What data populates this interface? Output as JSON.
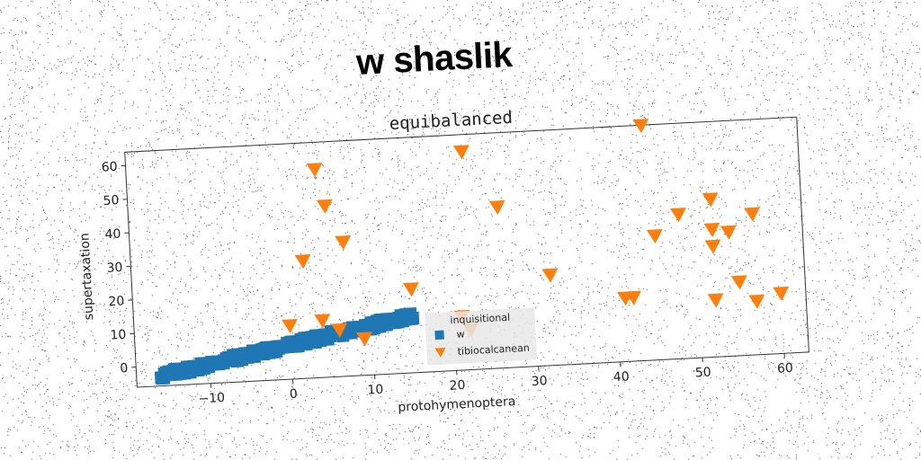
{
  "suptitle": "w shaslik",
  "chart_data": {
    "type": "scatter",
    "title": "equibalanced",
    "xlabel": "protohymenoptera",
    "ylabel": "supertaxation",
    "xlim": [
      -19,
      63
    ],
    "ylim": [
      -6,
      64
    ],
    "xticks": [
      -10,
      0,
      10,
      20,
      30,
      40,
      50,
      60
    ],
    "yticks": [
      0,
      10,
      20,
      30,
      40,
      50,
      60
    ],
    "rotation_deg": -3,
    "grid": false,
    "legend": {
      "title": "inquisitional",
      "placement": "lower center",
      "entries": [
        "w",
        "tibiocalcanean"
      ]
    },
    "series": [
      {
        "name": "w",
        "marker": "square",
        "color": "#1f77b4",
        "x_range": [
          -16,
          15
        ],
        "y_range": [
          -3,
          11
        ],
        "points": 220
      },
      {
        "name": "tibiocalcanean",
        "marker": "triangle_down",
        "color": "#ff7f0e",
        "x": [
          44,
          22,
          4,
          5,
          26,
          7,
          2,
          15,
          0,
          4,
          6,
          9,
          21,
          22,
          32,
          41,
          42,
          45,
          48,
          52,
          52,
          52,
          54,
          57,
          55,
          52,
          57,
          60
        ],
        "y": [
          64,
          59,
          56,
          45,
          42,
          34,
          29,
          19,
          10,
          11,
          8,
          5,
          10,
          6,
          21,
          13,
          13,
          31,
          37,
          41,
          32,
          27,
          31,
          36,
          16,
          11,
          10,
          12
        ]
      }
    ]
  }
}
